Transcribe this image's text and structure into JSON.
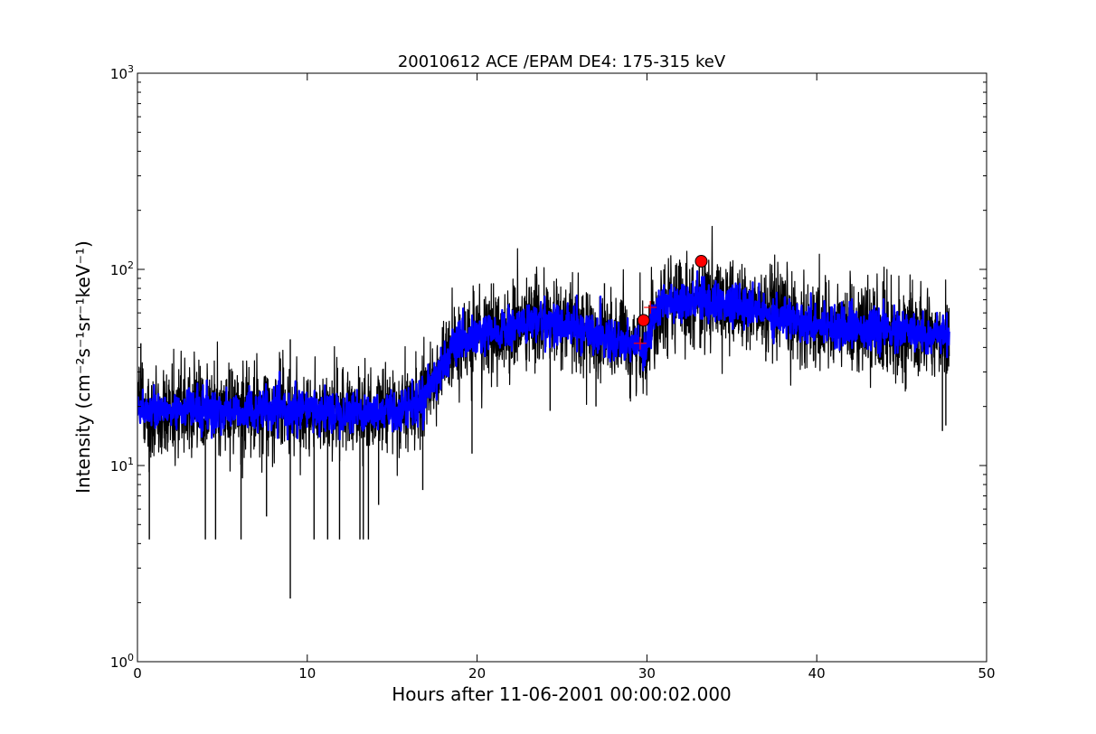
{
  "chart_data": {
    "type": "line",
    "title": "20010612 ACE /EPAM DE4: 175-315 keV",
    "xlabel": "Hours after 11-06-2001 00:00:02.000",
    "ylabel": "Intensity (cm⁻²s⁻¹sr⁻¹keV⁻¹)",
    "xlim": [
      0,
      50
    ],
    "ylim": [
      1,
      1000
    ],
    "yscale": "log",
    "grid": false,
    "x_ticks": [
      "0",
      "10",
      "20",
      "30",
      "40",
      "50"
    ],
    "y_ticks": [
      {
        "base": "10",
        "exp": "0"
      },
      {
        "base": "10",
        "exp": "1"
      },
      {
        "base": "10",
        "exp": "2"
      },
      {
        "base": "10",
        "exp": "3"
      }
    ],
    "series": [
      {
        "role": "raw",
        "color": "#000000",
        "x": [
          0,
          1,
          2,
          3,
          4,
          5,
          6,
          7,
          8,
          9,
          10,
          11,
          12,
          13,
          14,
          15,
          16,
          16.5,
          17,
          17.5,
          18,
          18.5,
          19,
          20,
          21,
          22,
          23,
          24,
          25,
          26,
          27,
          28,
          29,
          29.7,
          30,
          30.3,
          30.6,
          31,
          32,
          33,
          34,
          35,
          36,
          37,
          38,
          39,
          40,
          41,
          42,
          43,
          44,
          45,
          46,
          47,
          47.8
        ],
        "y": [
          20,
          19,
          19,
          20,
          19,
          19,
          19,
          19,
          19,
          19,
          19,
          19,
          19,
          19,
          19,
          19,
          20,
          21,
          24,
          28,
          33,
          38,
          42,
          45,
          47,
          50,
          53,
          55,
          52,
          50,
          47,
          44,
          42,
          40,
          42,
          55,
          60,
          68,
          70,
          70,
          68,
          65,
          63,
          60,
          57,
          55,
          53,
          52,
          51,
          50,
          49,
          48,
          47,
          46,
          45
        ],
        "spikes_down": [
          [
            0.7,
            4.2
          ],
          [
            4.0,
            4.2
          ],
          [
            4.6,
            4.2
          ],
          [
            6.1,
            4.2
          ],
          [
            7.6,
            5.5
          ],
          [
            9.0,
            2.1
          ],
          [
            10.4,
            4.2
          ],
          [
            11.2,
            4.2
          ],
          [
            11.9,
            4.2
          ],
          [
            13.1,
            4.2
          ],
          [
            13.3,
            4.2
          ],
          [
            13.6,
            4.2
          ],
          [
            14.2,
            6.3
          ],
          [
            16.8,
            7.5
          ],
          [
            19.7,
            11.5
          ],
          [
            24.3,
            19
          ],
          [
            27.0,
            20
          ],
          [
            29.0,
            22
          ],
          [
            37.0,
            34
          ],
          [
            47.4,
            15
          ],
          [
            47.6,
            16
          ]
        ],
        "spikes_up": [
          [
            0.2,
            42
          ],
          [
            9.0,
            44
          ],
          [
            27.5,
            85
          ],
          [
            31.0,
            100
          ],
          [
            33.5,
            95
          ]
        ]
      },
      {
        "role": "smoothed",
        "color": "#0000ff",
        "x": [
          0,
          1,
          2,
          3,
          4,
          5,
          6,
          7,
          8,
          9,
          10,
          11,
          12,
          13,
          14,
          15,
          16,
          16.5,
          17,
          17.5,
          18,
          18.5,
          19,
          20,
          21,
          22,
          23,
          24,
          25,
          26,
          27,
          28,
          29,
          29.7,
          30,
          30.3,
          30.6,
          31,
          32,
          33,
          34,
          35,
          36,
          37,
          38,
          39,
          40,
          41,
          42,
          43,
          44,
          45,
          46,
          47,
          47.8
        ],
        "y": [
          20,
          19,
          19,
          20,
          19,
          19,
          19,
          19,
          19,
          19,
          19,
          19,
          19,
          19,
          19,
          19,
          20,
          21,
          24,
          28,
          33,
          38,
          42,
          45,
          47,
          50,
          53,
          55,
          52,
          50,
          47,
          44,
          42,
          40,
          42,
          55,
          60,
          68,
          70,
          70,
          68,
          65,
          63,
          60,
          57,
          55,
          53,
          52,
          51,
          50,
          49,
          48,
          47,
          46,
          45
        ]
      }
    ],
    "markers": [
      {
        "x": 29.8,
        "y": 55,
        "color": "#ff0000",
        "shape": "circle"
      },
      {
        "x": 33.2,
        "y": 110,
        "color": "#ff0000",
        "shape": "circle"
      }
    ],
    "plus_markers": [
      {
        "x": 29.6,
        "y": 42,
        "color": "#ff0000"
      },
      {
        "x": 30.2,
        "y": 64,
        "color": "#ff0000"
      }
    ]
  }
}
